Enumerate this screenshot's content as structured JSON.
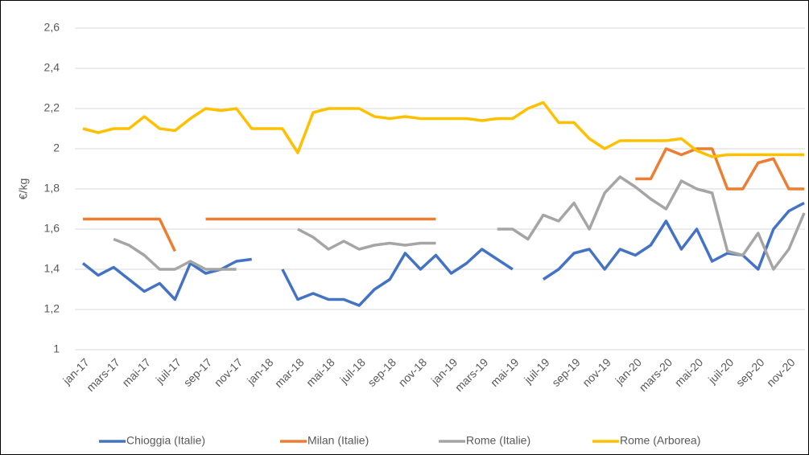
{
  "chart_data": {
    "type": "line",
    "y_label": "€/kg",
    "categories": [
      "jan-17",
      null,
      "mars-17",
      null,
      "mai-17",
      null,
      "juil-17",
      null,
      "sep-17",
      null,
      "nov-17",
      null,
      "jan-18",
      null,
      "mar-18",
      null,
      "mai-18",
      null,
      "juil-18",
      null,
      "sep-18",
      null,
      "nov-18",
      null,
      "jan-19",
      null,
      "mars-19",
      null,
      "mai-19",
      null,
      "juil-19",
      null,
      "sep-19",
      null,
      "nov-19",
      null,
      "jan-20",
      null,
      "mars-20",
      null,
      "mai-20",
      null,
      "juil-20",
      null,
      "sep-20",
      null,
      "nov-20",
      null
    ],
    "series": [
      {
        "name": "Chioggia (Italie)",
        "color": "#4472c4",
        "values": [
          1.43,
          1.37,
          1.41,
          1.35,
          1.29,
          1.33,
          1.25,
          1.43,
          1.38,
          1.4,
          1.44,
          1.45,
          null,
          1.4,
          1.25,
          1.28,
          1.25,
          1.25,
          1.22,
          1.3,
          1.35,
          1.48,
          1.4,
          1.47,
          1.38,
          1.43,
          1.5,
          1.45,
          1.4,
          null,
          1.35,
          1.4,
          1.48,
          1.5,
          1.4,
          1.5,
          1.47,
          1.52,
          1.64,
          1.5,
          1.6,
          1.44,
          1.48,
          1.47,
          1.4,
          1.6,
          1.69,
          1.73
        ]
      },
      {
        "name": "Milan (Italie)",
        "color": "#ed7d31",
        "values": [
          1.65,
          1.65,
          1.65,
          1.65,
          1.65,
          1.65,
          1.49,
          null,
          1.65,
          1.65,
          1.65,
          1.65,
          1.65,
          1.65,
          1.65,
          1.65,
          1.65,
          1.65,
          1.65,
          1.65,
          1.65,
          1.65,
          1.65,
          1.65,
          null,
          null,
          null,
          null,
          null,
          null,
          null,
          null,
          null,
          null,
          null,
          null,
          1.85,
          1.85,
          2.0,
          1.97,
          2.0,
          2.0,
          1.8,
          1.8,
          1.93,
          1.95,
          1.8,
          1.8
        ]
      },
      {
        "name": "Rome (Italie)",
        "color": "#a5a5a5",
        "values": [
          null,
          null,
          1.55,
          1.52,
          1.47,
          1.4,
          1.4,
          1.44,
          1.4,
          1.4,
          1.4,
          null,
          null,
          null,
          1.6,
          1.56,
          1.5,
          1.54,
          1.5,
          1.52,
          1.53,
          1.52,
          1.53,
          1.53,
          null,
          null,
          null,
          1.6,
          1.6,
          1.55,
          1.67,
          1.64,
          1.73,
          1.6,
          1.78,
          1.86,
          1.81,
          1.75,
          1.7,
          1.84,
          1.8,
          1.78,
          1.49,
          1.47,
          1.58,
          1.4,
          1.5,
          1.68
        ]
      },
      {
        "name": "Rome (Arborea)",
        "color": "#ffc000",
        "values": [
          2.1,
          2.08,
          2.1,
          2.1,
          2.16,
          2.1,
          2.09,
          2.15,
          2.2,
          2.19,
          2.2,
          2.1,
          2.1,
          2.1,
          1.98,
          2.18,
          2.2,
          2.2,
          2.2,
          2.16,
          2.15,
          2.16,
          2.15,
          2.15,
          2.15,
          2.15,
          2.14,
          2.15,
          2.15,
          2.2,
          2.23,
          2.13,
          2.13,
          2.05,
          2.0,
          2.04,
          2.04,
          2.04,
          2.04,
          2.05,
          1.99,
          1.96,
          1.97,
          1.97,
          1.97,
          1.97,
          1.97,
          1.97
        ]
      }
    ],
    "ylim": [
      1,
      2.6
    ],
    "yticks": [
      1,
      {
        "value": 1.2,
        "label": "1,2"
      },
      {
        "value": 1.4,
        "label": "1,4"
      },
      {
        "value": 1.6,
        "label": "1,6"
      },
      {
        "value": 1.8,
        "label": "1,8"
      },
      2,
      {
        "value": 2.2,
        "label": "2,2"
      },
      {
        "value": 2.4,
        "label": "2,4"
      },
      {
        "value": 2.6,
        "label": "2,6"
      }
    ],
    "grid": true,
    "legend": "bottom"
  }
}
